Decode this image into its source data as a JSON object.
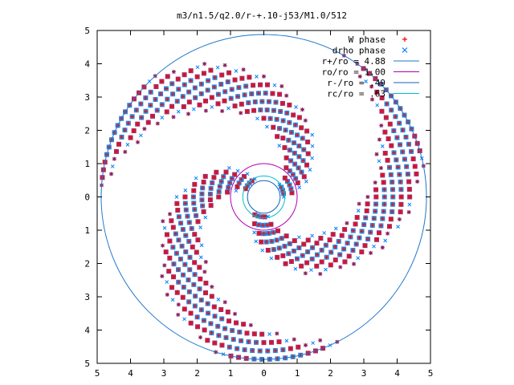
{
  "chart_data": {
    "type": "scatter",
    "title": "m3/n1.5/q2.0/r-+.10-j53/M1.0/512",
    "xlim": [
      -5,
      5
    ],
    "ylim": [
      -5,
      5
    ],
    "x_ticks": [
      -5,
      -4,
      -3,
      -2,
      -1,
      0,
      1,
      2,
      3,
      4,
      5
    ],
    "y_ticks": [
      -5,
      -4,
      -3,
      -2,
      -1,
      0,
      1,
      2,
      3,
      4,
      5
    ],
    "x_tick_labels": [
      "5",
      "4",
      "3",
      "2",
      "1",
      "0",
      "1",
      "2",
      "3",
      "4",
      "5"
    ],
    "y_tick_labels": [
      "5",
      "4",
      "3",
      "2",
      "1",
      "0",
      "1",
      "2",
      "3",
      "4",
      "5"
    ],
    "grid": false,
    "legend_position": "top-right",
    "spiral": {
      "arms": 3,
      "r_min": 0.6,
      "r_max": 4.88,
      "phase_per_unit_radius_deg": 95,
      "rings": 18
    },
    "series": [
      {
        "name": "W phase",
        "marker": "+",
        "color": "#ff0000"
      },
      {
        "name": "drho phase",
        "marker": "x",
        "color": "#0080ff"
      },
      {
        "name": "r+/ro = 4.88",
        "type": "circle",
        "radius": 4.88,
        "color": "#1f77c8"
      },
      {
        "name": "ro/ro = 1.00",
        "type": "circle",
        "radius": 1.0,
        "color": "#b000b0"
      },
      {
        "name": "r-/ro = .49",
        "type": "circle",
        "radius": 0.49,
        "color": "#1060c0"
      },
      {
        "name": "rc/ro = .63",
        "type": "circle",
        "radius": 0.63,
        "color": "#00c0c8"
      }
    ],
    "legend_entries": [
      {
        "label": "W phase",
        "sample": "+",
        "color": "#ff0000"
      },
      {
        "label": "drho phase",
        "sample": "x",
        "color": "#0080ff"
      },
      {
        "label": "r+/ro = 4.88",
        "sample": "line",
        "color": "#1f77c8"
      },
      {
        "label": "ro/ro = 1.00",
        "sample": "line",
        "color": "#b000b0"
      },
      {
        "label": "r-/ro = .49",
        "sample": "line",
        "color": "#1060c0"
      },
      {
        "label": "rc/ro = .63",
        "sample": "line",
        "color": "#00c0c8"
      }
    ]
  }
}
